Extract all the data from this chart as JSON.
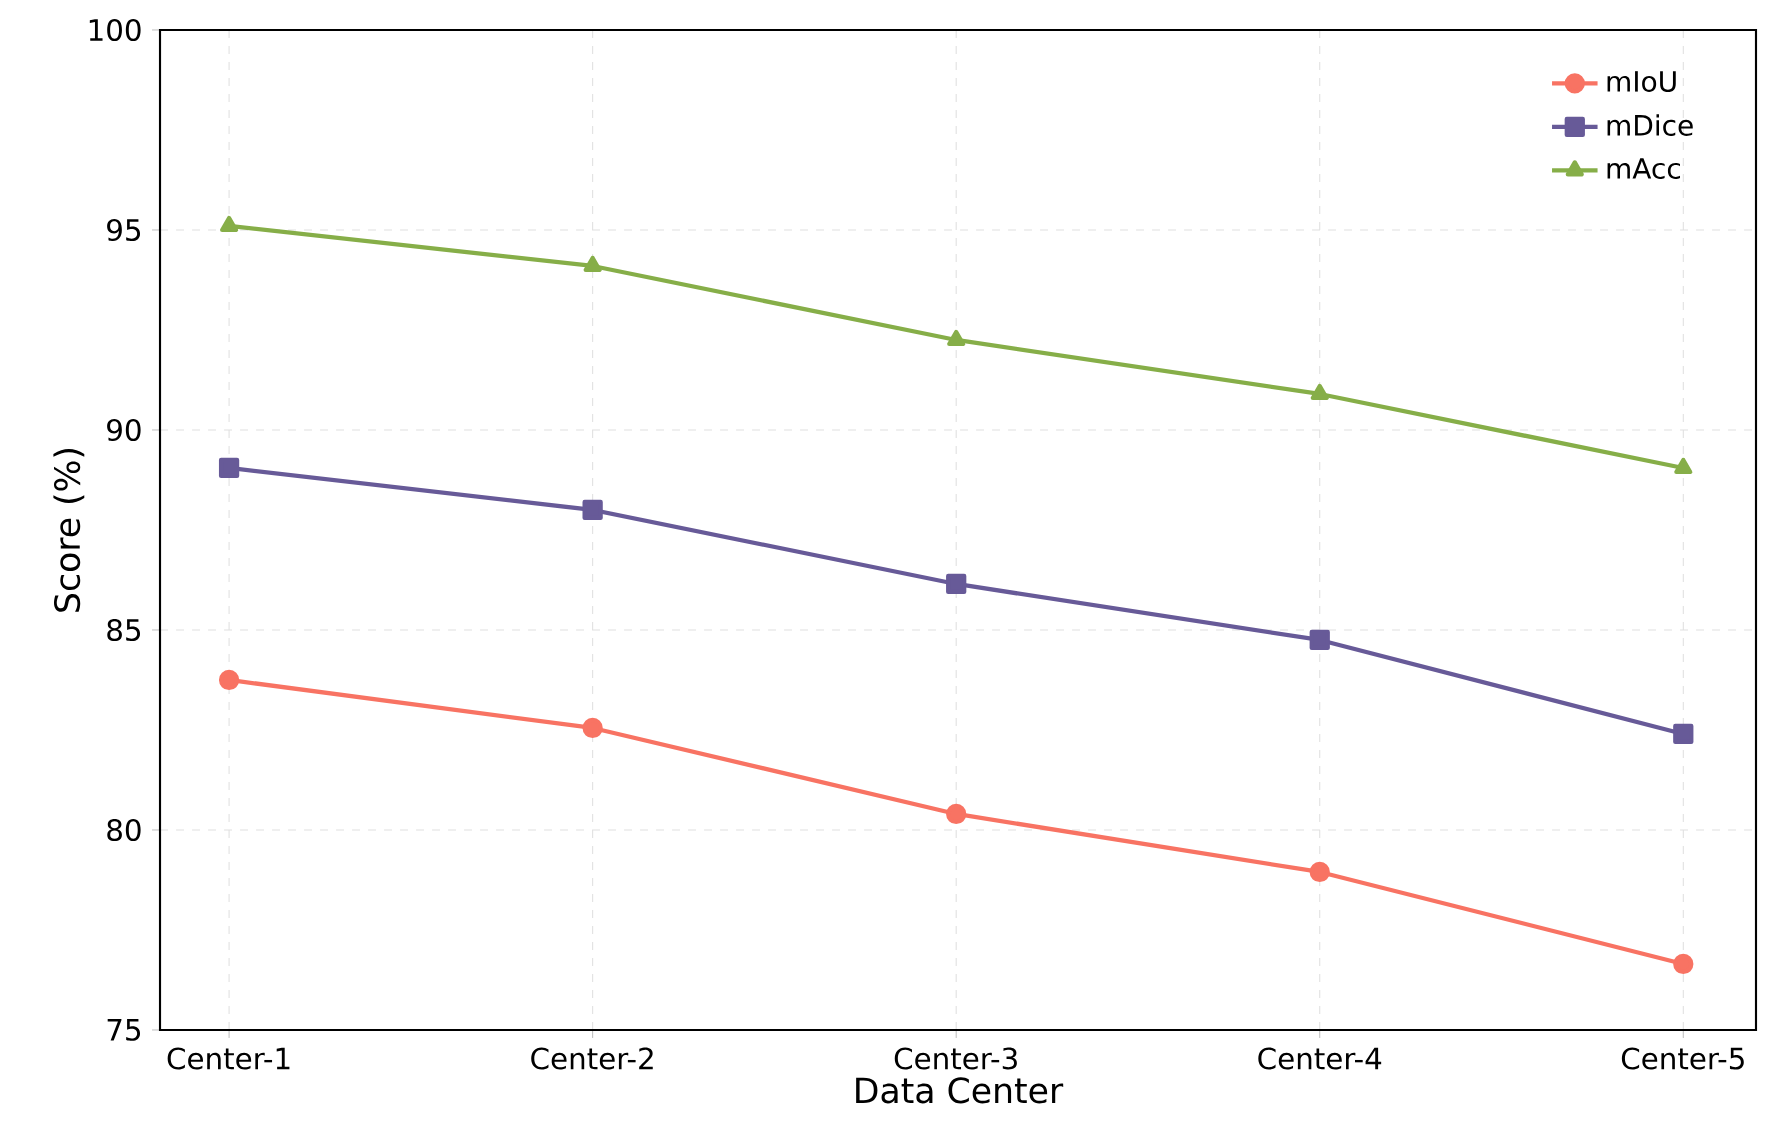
{
  "chart_data": {
    "type": "line",
    "xlabel": "Data Center",
    "ylabel": "Score (%)",
    "categories": [
      "Center-1",
      "Center-2",
      "Center-3",
      "Center-4",
      "Center-5"
    ],
    "series": [
      {
        "name": "mIoU",
        "color": "#f87363",
        "marker": "circle",
        "values": [
          83.75,
          82.55,
          80.4,
          78.95,
          76.65
        ]
      },
      {
        "name": "mDice",
        "color": "#675a98",
        "marker": "square",
        "values": [
          89.05,
          88.0,
          86.15,
          84.75,
          82.4
        ]
      },
      {
        "name": "mAcc",
        "color": "#86ae48",
        "marker": "triangle",
        "values": [
          95.1,
          94.1,
          92.25,
          90.9,
          89.05
        ]
      }
    ],
    "ylim": [
      75,
      100
    ],
    "yticks": [
      75,
      80,
      85,
      90,
      95,
      100
    ],
    "grid": true,
    "legend": "top right",
    "line_style": "solid"
  }
}
